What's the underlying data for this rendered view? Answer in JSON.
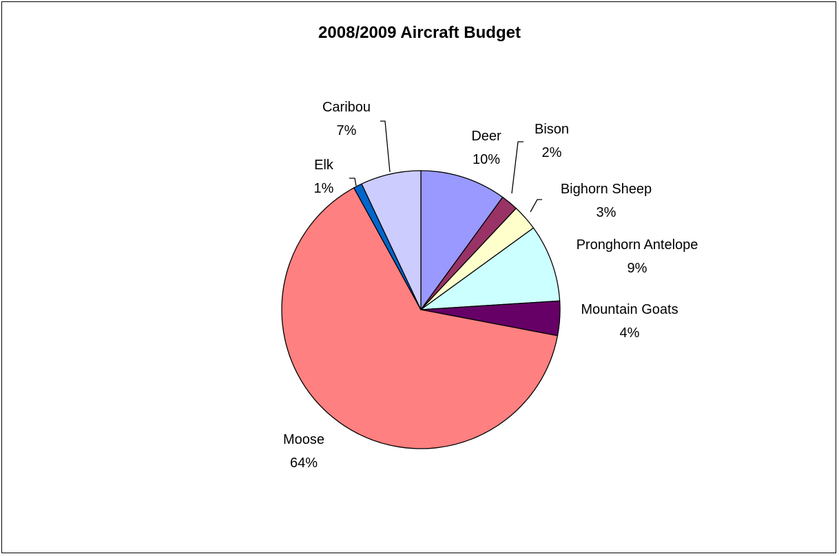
{
  "chart_data": {
    "type": "pie",
    "title": "2008/2009 Aircraft Budget",
    "slices": [
      {
        "name": "Deer",
        "percent": 10,
        "label": "10%",
        "color": "#9999ff"
      },
      {
        "name": "Bison",
        "percent": 2,
        "label": "2%",
        "color": "#993366"
      },
      {
        "name": "Bighorn Sheep",
        "percent": 3,
        "label": "3%",
        "color": "#ffffcc"
      },
      {
        "name": "Pronghorn Antelope",
        "percent": 9,
        "label": "9%",
        "color": "#ccffff"
      },
      {
        "name": "Mountain Goats",
        "percent": 4,
        "label": "4%",
        "color": "#660066"
      },
      {
        "name": "Moose",
        "percent": 64,
        "label": "64%",
        "color": "#ff8080"
      },
      {
        "name": "Elk",
        "percent": 1,
        "label": "1%",
        "color": "#0066cc"
      },
      {
        "name": "Caribou",
        "percent": 7,
        "label": "7%",
        "color": "#ccccff"
      }
    ]
  }
}
